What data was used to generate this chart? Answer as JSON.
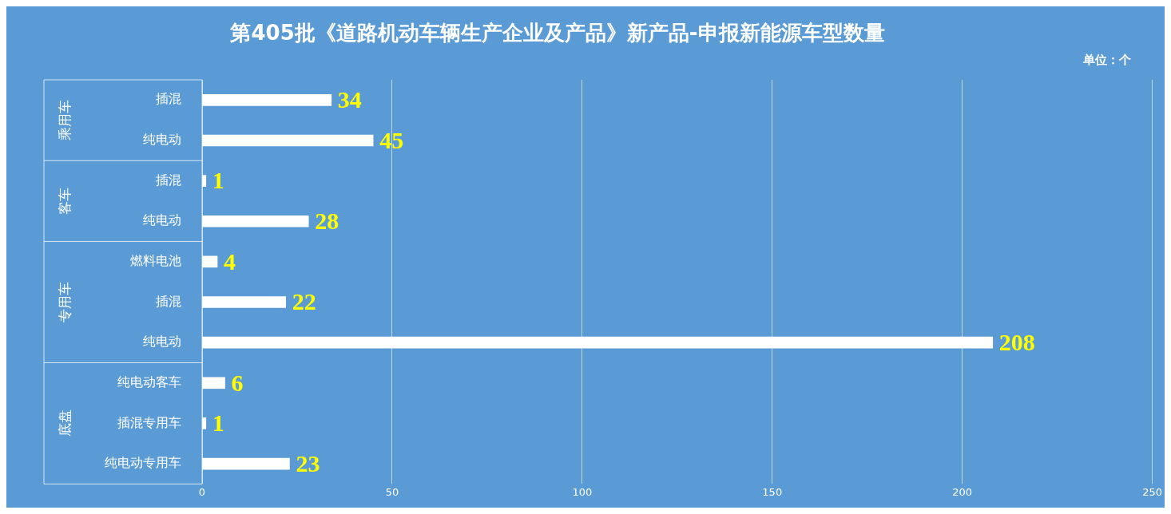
{
  "chart_data": {
    "type": "bar",
    "orientation": "horizontal",
    "title": "第405批《道路机动车辆生产企业及产品》新产品-申报新能源车型数量",
    "categories": [
      "插混",
      "纯电动",
      "插混",
      "纯电动",
      "燃料电池",
      "插混",
      "纯电动",
      "纯电动客车",
      "插混专用车",
      "纯电动专用车"
    ],
    "values": [
      34,
      45,
      1,
      28,
      4,
      22,
      208,
      6,
      1,
      23
    ],
    "color": "#ffffff",
    "xlim": [
      0,
      250
    ],
    "xticks": [
      0,
      50,
      100,
      150,
      200,
      250
    ],
    "grid": "x",
    "data_labels": true,
    "legend": false,
    "annotations": [
      "单位：个",
      "乘用车",
      "客车",
      "专用车",
      "底盘"
    ]
  }
}
